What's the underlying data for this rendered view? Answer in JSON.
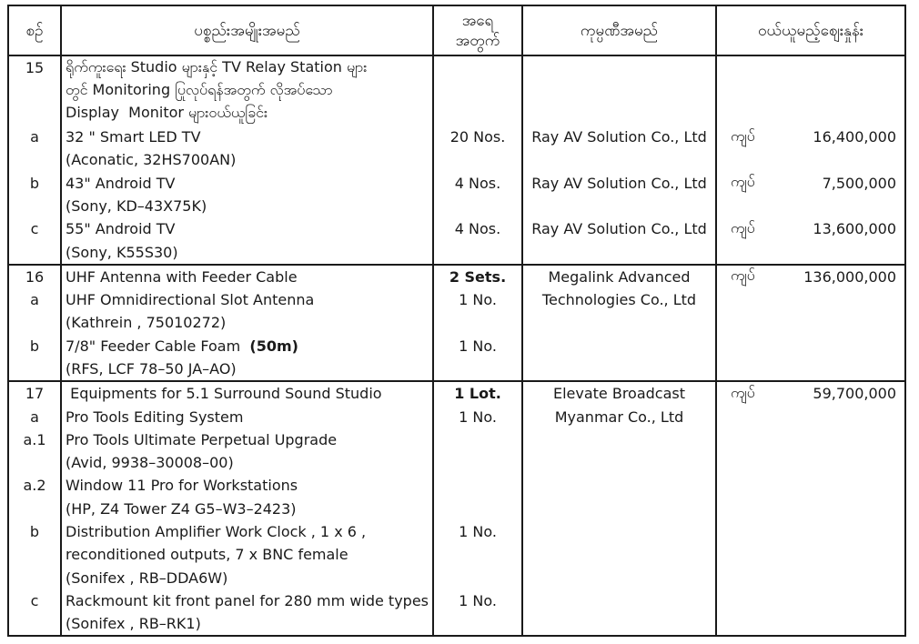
{
  "page": {
    "background": "#ffffff",
    "border_color": "#1a1a1a"
  },
  "table": {
    "header": {
      "no": "စဉ်",
      "item": "ပစ္စည်းအမျိုးအမည်",
      "qty_line1": "အရေ",
      "qty_line2": "အတွက်",
      "company": "ကုမ္ပဏီအမည်",
      "price": "ဝယ်ယူမည့်ဈေးနှုန်း"
    },
    "currency_label": "ကျပ်",
    "sections": [
      {
        "lines": [
          {
            "no": "15",
            "item": "ရိုက်ကူးရေး Studio များနှင့် TV Relay Station များ"
          },
          {
            "item": "တွင် Monitoring ပြုလုပ်ရန်အတွက် လိုအပ်သော"
          },
          {
            "item": "Display  Monitor များဝယ်ယူခြင်း"
          },
          {
            "no": "a",
            "item": "32 \" Smart LED TV",
            "qty": "20 Nos.",
            "company": "Ray AV Solution Co., Ltd",
            "currency": "ကျပ်",
            "price": "16,400,000"
          },
          {
            "item": "(Aconatic, 32HS700AN)"
          },
          {
            "no": "b",
            "item": "43\" Android TV",
            "qty": "4 Nos.",
            "company": "Ray AV Solution Co., Ltd",
            "currency": "ကျပ်",
            "price": "7,500,000"
          },
          {
            "item": "(Sony, KD–43X75K)"
          },
          {
            "no": "c",
            "item": "55\" Android TV",
            "qty": "4 Nos.",
            "company": "Ray AV Solution Co., Ltd",
            "currency": "ကျပ်",
            "price": "13,600,000"
          },
          {
            "item": "(Sony, K55S30)"
          }
        ]
      },
      {
        "lines": [
          {
            "no": "16",
            "item": "UHF Antenna with Feeder Cable",
            "qty": "2 Sets.",
            "qty_bold": true,
            "company": "Megalink Advanced",
            "currency": "ကျပ်",
            "price": "136,000,000"
          },
          {
            "no": "a",
            "item": "UHF Omnidirectional Slot Antenna",
            "qty": "1 No.",
            "company": "Technologies Co., Ltd"
          },
          {
            "item": "(Kathrein , 75010272)"
          },
          {
            "no": "b",
            "item": "7/8\" Feeder Cable Foam  ",
            "item_bold": "(50m)",
            "qty": "1 No."
          },
          {
            "item": "(RFS, LCF 78–50 JA–AO)"
          }
        ]
      },
      {
        "lines": [
          {
            "no": "17",
            "item": " Equipments for 5.1 Surround Sound Studio",
            "qty": "1 Lot.",
            "qty_bold": true,
            "company": "Elevate Broadcast",
            "currency": "ကျပ်",
            "price": "59,700,000"
          },
          {
            "no": "a",
            "item": "Pro Tools Editing System",
            "qty": "1 No.",
            "company": "Myanmar Co., Ltd"
          },
          {
            "no": "a.1",
            "item": "Pro Tools Ultimate Perpetual Upgrade"
          },
          {
            "item": "(Avid, 9938–30008–00)"
          },
          {
            "no": "a.2",
            "item": "Window 11 Pro for Workstations"
          },
          {
            "item": "(HP, Z4 Tower Z4 G5–W3–2423)"
          },
          {
            "no": "b",
            "item": "Distribution Amplifier Work Clock , 1 x 6 ,",
            "qty": "1 No."
          },
          {
            "item": "reconditioned outputs, 7 x BNC female"
          },
          {
            "item": "(Sonifex , RB–DDA6W)"
          },
          {
            "no": "c",
            "item": "Rackmount kit front panel for 280 mm wide types",
            "qty": "1 No."
          },
          {
            "item": "(Sonifex , RB–RK1)"
          }
        ]
      }
    ]
  }
}
